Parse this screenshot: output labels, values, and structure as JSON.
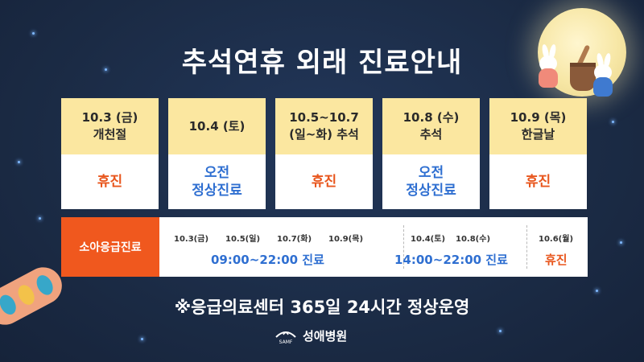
{
  "title": "추석연휴 외래 진료안내",
  "colors": {
    "background": "#1b2b45",
    "card_header": "#fbe7a0",
    "closed_text": "#e8561d",
    "open_text": "#2f6fd1",
    "ped_label_bg": "#f0581e"
  },
  "schedule": [
    {
      "date": "10.3 (금)",
      "name": "개천절",
      "status": "휴진",
      "status_line2": "",
      "type": "closed"
    },
    {
      "date": "10.4 (토)",
      "name": "",
      "status": "오전",
      "status_line2": "정상진료",
      "type": "open"
    },
    {
      "date": "10.5~10.7",
      "name": "(일~화) 추석",
      "status": "휴진",
      "status_line2": "",
      "type": "closed"
    },
    {
      "date": "10.8 (수)",
      "name": "추석",
      "status": "오전",
      "status_line2": "정상진료",
      "type": "open"
    },
    {
      "date": "10.9 (목)",
      "name": "한글날",
      "status": "휴진",
      "status_line2": "",
      "type": "closed"
    }
  ],
  "pediatric": {
    "label": "소아응급진료",
    "groups": [
      {
        "dates": [
          "10.3(금)",
          "10.5(일)",
          "10.7(화)",
          "10.9(목)"
        ],
        "hours": "09:00~22:00 진료"
      },
      {
        "dates": [
          "10.4(토)",
          "10.8(수)"
        ],
        "hours": "14:00~22:00 진료"
      },
      {
        "dates": [
          "10.6(월)"
        ],
        "hours": "휴진"
      }
    ]
  },
  "notice": "※응급의료센터 365일 24시간 정상운영",
  "logo": {
    "mark_text": "SAMF",
    "name": "성애병원",
    "icon": "hospital-logo-icon"
  }
}
